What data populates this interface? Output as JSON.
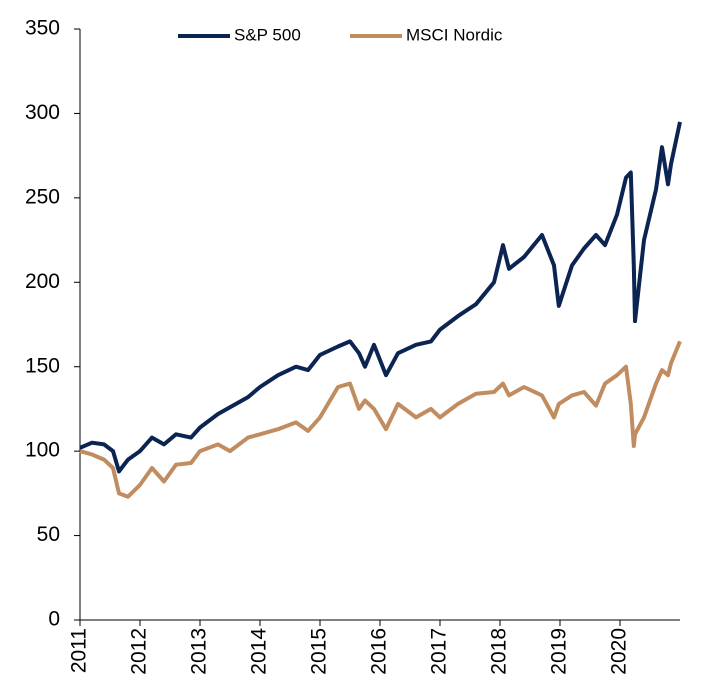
{
  "chart_data": {
    "type": "line",
    "xlim": [
      2011,
      2021
    ],
    "xticks": [
      2011,
      2012,
      2013,
      2014,
      2015,
      2016,
      2017,
      2018,
      2019,
      2020
    ],
    "ylim": [
      0,
      350
    ],
    "yticks": [
      0,
      50,
      100,
      150,
      200,
      250,
      300,
      350
    ],
    "legend": "top",
    "x": [
      2011.0,
      2011.2,
      2011.4,
      2011.55,
      2011.65,
      2011.8,
      2012.0,
      2012.2,
      2012.4,
      2012.6,
      2012.85,
      2013.0,
      2013.3,
      2013.5,
      2013.8,
      2014.0,
      2014.3,
      2014.6,
      2014.8,
      2015.0,
      2015.3,
      2015.5,
      2015.65,
      2015.75,
      2015.9,
      2016.1,
      2016.3,
      2016.6,
      2016.85,
      2017.0,
      2017.3,
      2017.6,
      2017.9,
      2018.05,
      2018.15,
      2018.4,
      2018.7,
      2018.9,
      2018.98,
      2019.2,
      2019.4,
      2019.6,
      2019.75,
      2019.95,
      2020.1,
      2020.18,
      2020.23,
      2020.25,
      2020.4,
      2020.6,
      2020.7,
      2020.8,
      2020.85,
      2021.0
    ],
    "series": [
      {
        "name": "S&P 500",
        "color": "#0b2452",
        "values": [
          102,
          105,
          104,
          100,
          88,
          95,
          100,
          108,
          104,
          110,
          108,
          114,
          122,
          126,
          132,
          138,
          145,
          150,
          148,
          157,
          162,
          165,
          158,
          150,
          163,
          145,
          158,
          163,
          165,
          172,
          180,
          187,
          200,
          222,
          208,
          215,
          228,
          210,
          186,
          210,
          220,
          228,
          222,
          240,
          262,
          265,
          210,
          177,
          225,
          255,
          280,
          258,
          270,
          295
        ]
      },
      {
        "name": "MSCI Nordic",
        "color": "#c18c60",
        "values": [
          100,
          98,
          95,
          90,
          75,
          73,
          80,
          90,
          82,
          92,
          93,
          100,
          104,
          100,
          108,
          110,
          113,
          117,
          112,
          120,
          138,
          140,
          125,
          130,
          125,
          113,
          128,
          120,
          125,
          120,
          128,
          134,
          135,
          140,
          133,
          138,
          133,
          120,
          128,
          133,
          135,
          127,
          140,
          145,
          150,
          128,
          103,
          110,
          120,
          140,
          148,
          145,
          152,
          165
        ]
      }
    ]
  }
}
